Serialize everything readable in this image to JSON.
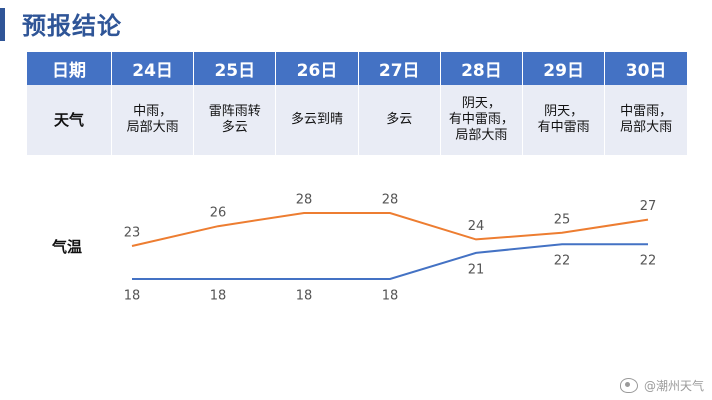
{
  "page": {
    "title": "预报结论"
  },
  "table": {
    "header_label": "日期",
    "weather_label": "天气",
    "days": [
      {
        "date": "24日",
        "weather": "中雨，\n局部大雨"
      },
      {
        "date": "25日",
        "weather": "雷阵雨转\n多云"
      },
      {
        "date": "26日",
        "weather": "多云到晴"
      },
      {
        "date": "27日",
        "weather": "多云"
      },
      {
        "date": "28日",
        "weather": "阴天，\n有中雷雨，\n局部大雨"
      },
      {
        "date": "29日",
        "weather": "阴天，\n有中雷雨"
      },
      {
        "date": "30日",
        "weather": "中雷雨，\n局部大雨"
      }
    ]
  },
  "temperature": {
    "label": "气温"
  },
  "chart_data": {
    "type": "line",
    "categories": [
      "24日",
      "25日",
      "26日",
      "27日",
      "28日",
      "29日",
      "30日"
    ],
    "series": [
      {
        "values": [
          23,
          26,
          28,
          28,
          24,
          25,
          27
        ],
        "color": "#ed7d31"
      },
      {
        "values": [
          18,
          18,
          18,
          18,
          21,
          22,
          22
        ],
        "color": "#4472c4"
      }
    ],
    "grid": false,
    "data_labels": true
  },
  "watermark": {
    "text": "@潮州天气",
    "icon": "weibo-icon"
  }
}
